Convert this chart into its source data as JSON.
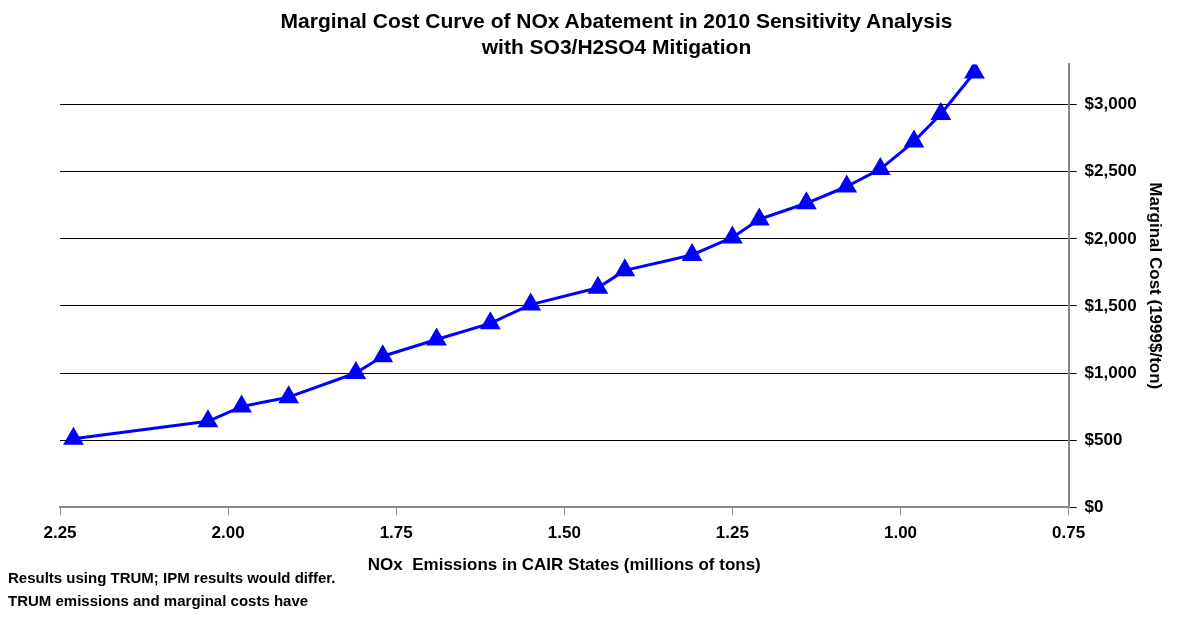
{
  "chart_data": {
    "type": "line",
    "title": "Marginal Cost Curve of NOx Abatement in 2010 Sensitivity Analysis\nwith SO3/H2SO4 Mitigation",
    "xlabel": "NOx  Emissions in CAIR States (millions of tons)",
    "y2label": "Marginal Cost (1999$/ton)",
    "x": [
      2.23,
      2.03,
      1.98,
      1.91,
      1.81,
      1.77,
      1.69,
      1.61,
      1.55,
      1.45,
      1.41,
      1.31,
      1.25,
      1.21,
      1.14,
      1.08,
      1.03,
      0.98,
      0.94,
      0.89
    ],
    "series": [
      {
        "color": "#0000ff",
        "axis": "y2",
        "values": [
          510,
          640,
          750,
          820,
          1000,
          1125,
          1250,
          1370,
          1510,
          1635,
          1765,
          1880,
          2010,
          2145,
          2265,
          2390,
          2520,
          2725,
          2930,
          3240
        ]
      }
    ],
    "xlim": [
      2.25,
      0.75
    ],
    "xticks": [
      {
        "value": 2.25,
        "label": "2.25"
      },
      {
        "value": 2,
        "label": "2.00"
      },
      {
        "value": 1.75,
        "label": "1.75"
      },
      {
        "value": 1.5,
        "label": "1.50"
      },
      {
        "value": 1.25,
        "label": "1.25"
      },
      {
        "value": 1,
        "label": "1.00"
      },
      {
        "value": 0.75,
        "label": "0.75"
      }
    ],
    "y2lim": [
      0,
      3300
    ],
    "y2ticks": [
      {
        "value": 0,
        "label": "$0"
      },
      {
        "value": 500,
        "label": "$500"
      },
      {
        "value": 1000,
        "label": "$1,000"
      },
      {
        "value": 1500,
        "label": "$1,500"
      },
      {
        "value": 2000,
        "label": "$2,000"
      },
      {
        "value": 2500,
        "label": "$2,500"
      },
      {
        "value": 3000,
        "label": "$3,000"
      }
    ],
    "grid": "y",
    "legend": false,
    "marker": "triangle",
    "line_style": "solid",
    "annotations": [
      "Results using TRUM; IPM results would differ.",
      "TRUM emissions and marginal costs have"
    ]
  }
}
